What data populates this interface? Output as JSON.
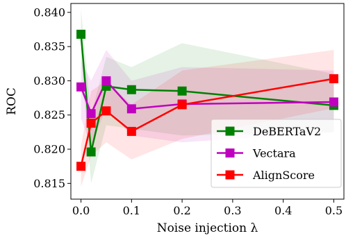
{
  "chart_data": {
    "type": "line",
    "xlabel": "Noise injection λ",
    "ylabel": "ROC",
    "xlim": [
      -0.02,
      0.52
    ],
    "ylim": [
      0.8127,
      0.8413
    ],
    "x_ticks": [
      0.0,
      0.1,
      0.2,
      0.3,
      0.4,
      0.5
    ],
    "x_tick_labels": [
      "0.0",
      "0.1",
      "0.2",
      "0.3",
      "0.4",
      "0.5"
    ],
    "y_ticks": [
      0.815,
      0.82,
      0.825,
      0.83,
      0.835,
      0.84
    ],
    "y_tick_labels": [
      "0.815",
      "0.820",
      "0.825",
      "0.830",
      "0.835",
      "0.840"
    ],
    "grid": false,
    "legend_position": "lower-right",
    "marker": "square",
    "series": [
      {
        "name": "DeBERTaV2",
        "color": "#008000",
        "x": [
          0.0,
          0.02,
          0.05,
          0.1,
          0.2,
          0.5
        ],
        "values": [
          0.8368,
          0.8196,
          0.8292,
          0.8287,
          0.8285,
          0.8264
        ],
        "band_lower": [
          0.8335,
          0.815,
          0.8235,
          0.823,
          0.822,
          0.8225
        ],
        "band_upper": [
          0.8405,
          0.825,
          0.8335,
          0.832,
          0.8355,
          0.831
        ]
      },
      {
        "name": "Vectara",
        "color": "#bf00bf",
        "x": [
          0.0,
          0.02,
          0.05,
          0.1,
          0.2,
          0.5
        ],
        "values": [
          0.8291,
          0.8252,
          0.83,
          0.8259,
          0.8266,
          0.8269
        ],
        "band_lower": [
          0.8245,
          0.8205,
          0.826,
          0.822,
          0.821,
          0.8225
        ],
        "band_upper": [
          0.833,
          0.83,
          0.8345,
          0.83,
          0.832,
          0.8315
        ]
      },
      {
        "name": "AlignScore",
        "color": "#ff0000",
        "x": [
          0.0,
          0.02,
          0.05,
          0.1,
          0.2,
          0.5
        ],
        "values": [
          0.8175,
          0.8238,
          0.8256,
          0.8226,
          0.8265,
          0.8303
        ],
        "band_lower": [
          0.8145,
          0.819,
          0.821,
          0.8185,
          0.8215,
          0.826
        ],
        "band_upper": [
          0.8205,
          0.8285,
          0.83,
          0.8265,
          0.8315,
          0.8345
        ]
      }
    ]
  }
}
